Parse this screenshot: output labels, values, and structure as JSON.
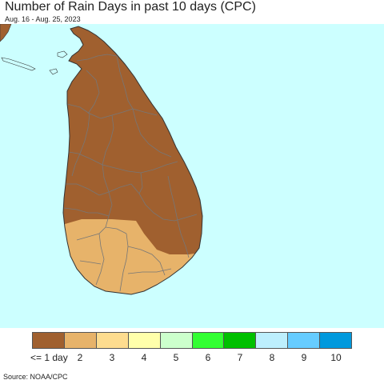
{
  "header": {
    "title": "Number of Rain Days in past 10 days (CPC)",
    "subtitle": "Aug. 16 - Aug. 25, 2023"
  },
  "map": {
    "region": "Sri Lanka",
    "ocean_color": "#ccffff",
    "boundary_color": "#777777"
  },
  "legend": {
    "items": [
      {
        "label": "<= 1 day",
        "color": "#a0602f"
      },
      {
        "label": "2",
        "color": "#e7b36a"
      },
      {
        "label": "3",
        "color": "#fddc8f"
      },
      {
        "label": "4",
        "color": "#ffffab"
      },
      {
        "label": "5",
        "color": "#ccffcc"
      },
      {
        "label": "6",
        "color": "#33ff33"
      },
      {
        "label": "7",
        "color": "#00c000"
      },
      {
        "label": "8",
        "color": "#bdeffd"
      },
      {
        "label": "9",
        "color": "#66ccff"
      },
      {
        "label": "10",
        "color": "#0099dd"
      }
    ]
  },
  "footer": {
    "source": "Source: NOAA/CPC"
  }
}
